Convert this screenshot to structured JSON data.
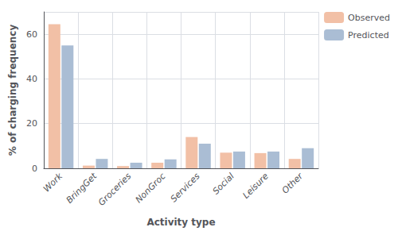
{
  "chart_data": {
    "type": "bar",
    "categories": [
      "Work",
      "BringGet",
      "Groceries",
      "NonGroc",
      "Services",
      "Social",
      "Leisure",
      "Other"
    ],
    "series": [
      {
        "name": "Observed",
        "color": "#F2C0A6",
        "values": [
          64.5,
          1.2,
          1.0,
          2.5,
          14.0,
          7.0,
          6.8,
          4.2
        ]
      },
      {
        "name": "Predicted",
        "color": "#AABDD4",
        "values": [
          55.0,
          4.2,
          2.5,
          4.0,
          11.0,
          7.5,
          7.5,
          9.0
        ]
      }
    ],
    "xlabel": "Activity type",
    "ylabel": "% of charging frequency",
    "ylim": [
      0,
      70
    ],
    "yticks": [
      0,
      20,
      40,
      60
    ],
    "grid": true,
    "legend": "right"
  }
}
